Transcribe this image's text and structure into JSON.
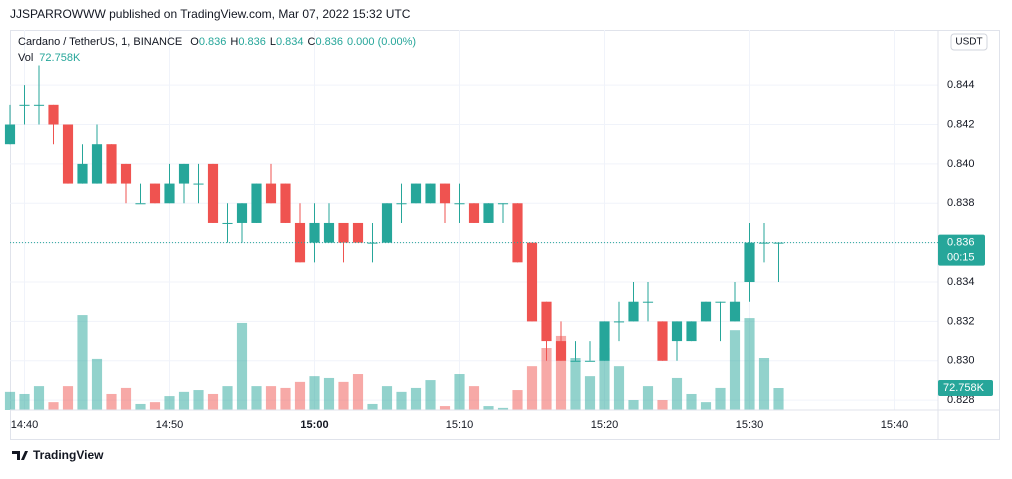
{
  "header": "JJSPARROWWW published on TradingView.com, Mar 07, 2022 15:32 UTC",
  "footer": "TradingView",
  "chart_data": {
    "type": "candlestick",
    "title": "Cardano / TetherUS, 1, BINANCE",
    "ohlc_legend": [
      {
        "key": "O",
        "value": "0.836"
      },
      {
        "key": "H",
        "value": "0.836"
      },
      {
        "key": "L",
        "value": "0.834"
      },
      {
        "key": "C",
        "value": "0.836"
      }
    ],
    "change_label": "0.000 (0.00%)",
    "volume_name": "Vol",
    "volume_label": "72.758K",
    "currency": "USDT",
    "last_price_label": "0.836",
    "countdown": "00:15",
    "up_color": "#26a69a",
    "down_color": "#ef5350",
    "x": [
      "14:39",
      "14:40",
      "14:41",
      "14:42",
      "14:43",
      "14:44",
      "14:45",
      "14:46",
      "14:47",
      "14:48",
      "14:49",
      "14:50",
      "14:51",
      "14:52",
      "14:53",
      "14:54",
      "14:55",
      "14:56",
      "14:57",
      "14:58",
      "14:59",
      "15:00",
      "15:01",
      "15:02",
      "15:03",
      "15:04",
      "15:05",
      "15:06",
      "15:07",
      "15:08",
      "15:09",
      "15:10",
      "15:11",
      "15:12",
      "15:13",
      "15:14",
      "15:15",
      "15:16",
      "15:17",
      "15:18",
      "15:19",
      "15:20",
      "15:21",
      "15:22",
      "15:23",
      "15:24",
      "15:25",
      "15:26",
      "15:27",
      "15:28",
      "15:29",
      "15:30",
      "15:31",
      "15:32"
    ],
    "open": [
      0.841,
      0.843,
      0.843,
      0.843,
      0.842,
      0.839,
      0.839,
      0.841,
      0.84,
      0.838,
      0.839,
      0.838,
      0.839,
      0.839,
      0.84,
      0.837,
      0.837,
      0.837,
      0.839,
      0.839,
      0.837,
      0.836,
      0.836,
      0.837,
      0.837,
      0.836,
      0.836,
      0.838,
      0.838,
      0.838,
      0.839,
      0.838,
      0.838,
      0.837,
      0.838,
      0.838,
      0.836,
      0.833,
      0.831,
      0.83,
      0.83,
      0.83,
      0.832,
      0.832,
      0.833,
      0.832,
      0.831,
      0.831,
      0.832,
      0.833,
      0.832,
      0.834,
      0.836,
      0.836
    ],
    "high": [
      0.843,
      0.844,
      0.845,
      0.843,
      0.842,
      0.841,
      0.842,
      0.841,
      0.84,
      0.839,
      0.839,
      0.84,
      0.84,
      0.84,
      0.84,
      0.838,
      0.838,
      0.839,
      0.84,
      0.839,
      0.838,
      0.838,
      0.838,
      0.837,
      0.837,
      0.837,
      0.838,
      0.839,
      0.839,
      0.839,
      0.839,
      0.839,
      0.838,
      0.838,
      0.838,
      0.838,
      0.836,
      0.833,
      0.832,
      0.831,
      0.831,
      0.832,
      0.833,
      0.834,
      0.834,
      0.832,
      0.832,
      0.832,
      0.833,
      0.833,
      0.834,
      0.837,
      0.837,
      0.836
    ],
    "low": [
      0.841,
      0.842,
      0.842,
      0.841,
      0.839,
      0.839,
      0.839,
      0.839,
      0.838,
      0.838,
      0.838,
      0.838,
      0.838,
      0.838,
      0.837,
      0.836,
      0.836,
      0.837,
      0.838,
      0.837,
      0.835,
      0.835,
      0.836,
      0.835,
      0.836,
      0.835,
      0.836,
      0.837,
      0.838,
      0.838,
      0.837,
      0.837,
      0.837,
      0.837,
      0.837,
      0.835,
      0.832,
      0.83,
      0.83,
      0.83,
      0.83,
      0.83,
      0.831,
      0.832,
      0.832,
      0.83,
      0.83,
      0.831,
      0.832,
      0.831,
      0.832,
      0.833,
      0.835,
      0.834
    ],
    "close": [
      0.842,
      0.843,
      0.843,
      0.842,
      0.839,
      0.84,
      0.841,
      0.839,
      0.839,
      0.838,
      0.838,
      0.839,
      0.84,
      0.839,
      0.837,
      0.837,
      0.838,
      0.839,
      0.838,
      0.837,
      0.835,
      0.837,
      0.837,
      0.836,
      0.836,
      0.836,
      0.838,
      0.838,
      0.839,
      0.839,
      0.838,
      0.838,
      0.837,
      0.838,
      0.838,
      0.835,
      0.832,
      0.831,
      0.83,
      0.83,
      0.83,
      0.832,
      0.832,
      0.833,
      0.833,
      0.83,
      0.832,
      0.832,
      0.833,
      0.833,
      0.833,
      0.836,
      0.836,
      0.836
    ],
    "volume": [
      60000,
      53000,
      79000,
      26000,
      79000,
      314000,
      169000,
      53000,
      73000,
      20000,
      26000,
      46000,
      60000,
      66000,
      53000,
      79000,
      288000,
      79000,
      79000,
      73000,
      93000,
      112000,
      106000,
      93000,
      119000,
      20000,
      79000,
      60000,
      73000,
      99000,
      13000,
      119000,
      79000,
      13000,
      7000,
      66000,
      145000,
      205000,
      245000,
      172000,
      112000,
      205000,
      145000,
      33000,
      79000,
      33000,
      106000,
      53000,
      26000,
      73000,
      264000,
      304000,
      172000,
      72758
    ],
    "vlim": [
      0,
      1257000
    ],
    "xlim": [
      "14:39",
      "15:43"
    ],
    "xticks": [
      "14:40",
      "14:50",
      "15:00",
      "15:10",
      "15:20",
      "15:30",
      "15:40"
    ],
    "ylim": [
      0.8275,
      0.8468
    ],
    "yticks": [
      0.828,
      0.83,
      0.832,
      0.834,
      0.836,
      0.838,
      0.84,
      0.842,
      0.844
    ],
    "grid": true
  }
}
